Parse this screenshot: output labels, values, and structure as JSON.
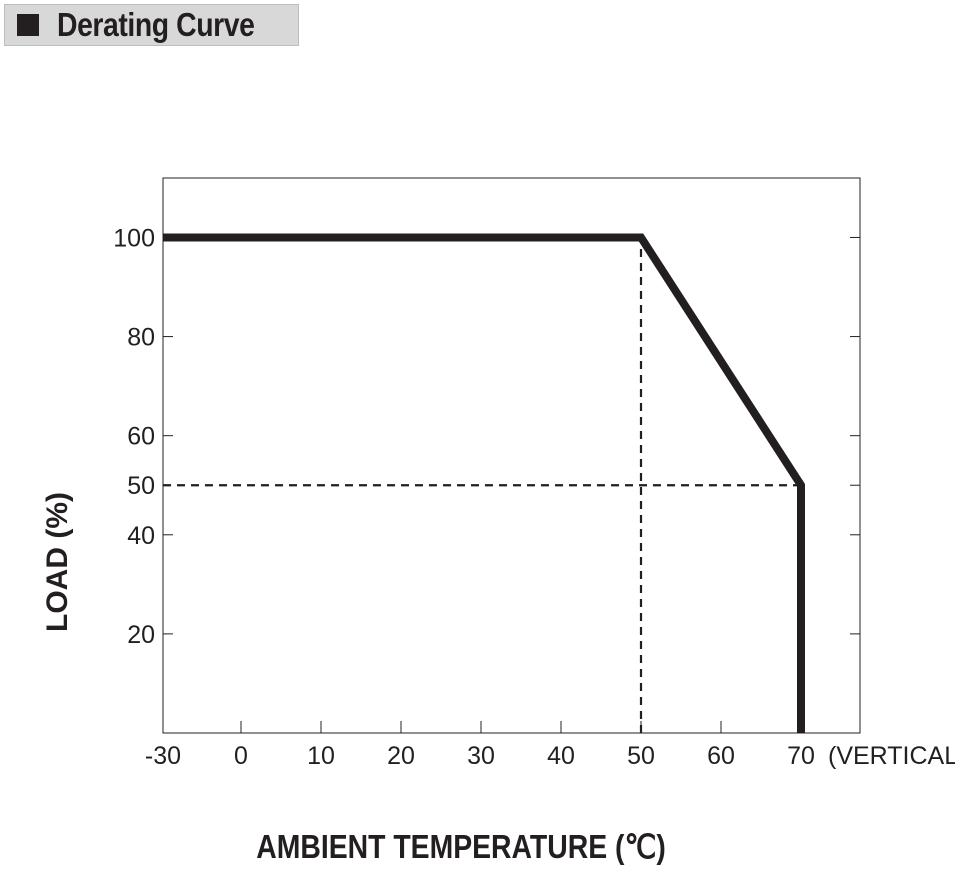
{
  "header": {
    "title": "Derating Curve"
  },
  "chart_data": {
    "type": "line",
    "title": "Derating Curve",
    "xlabel": "AMBIENT TEMPERATURE (℃)",
    "ylabel": "LOAD (%)",
    "x_ticks": [
      "-30",
      "0",
      "10",
      "20",
      "30",
      "40",
      "50",
      "60",
      "70"
    ],
    "x_tick_values": [
      -30,
      0,
      10,
      20,
      30,
      40,
      50,
      60,
      70
    ],
    "x_suffix_label": "(VERTICAL)",
    "y_ticks": [
      "100",
      "80",
      "60",
      "50",
      "40",
      "20"
    ],
    "y_tick_values": [
      100,
      80,
      60,
      50,
      40,
      20
    ],
    "ylim": [
      0,
      112
    ],
    "grid": false,
    "series": [
      {
        "points": [
          [
            -30,
            100
          ],
          [
            50,
            100
          ],
          [
            70,
            50
          ],
          [
            70,
            0
          ]
        ],
        "color": "#231f20"
      }
    ],
    "reference_lines": [
      {
        "points": [
          [
            50,
            0
          ],
          [
            50,
            100
          ]
        ],
        "style": "dashed"
      },
      {
        "points": [
          [
            -30,
            50
          ],
          [
            70,
            50
          ]
        ],
        "style": "dashed"
      }
    ]
  }
}
